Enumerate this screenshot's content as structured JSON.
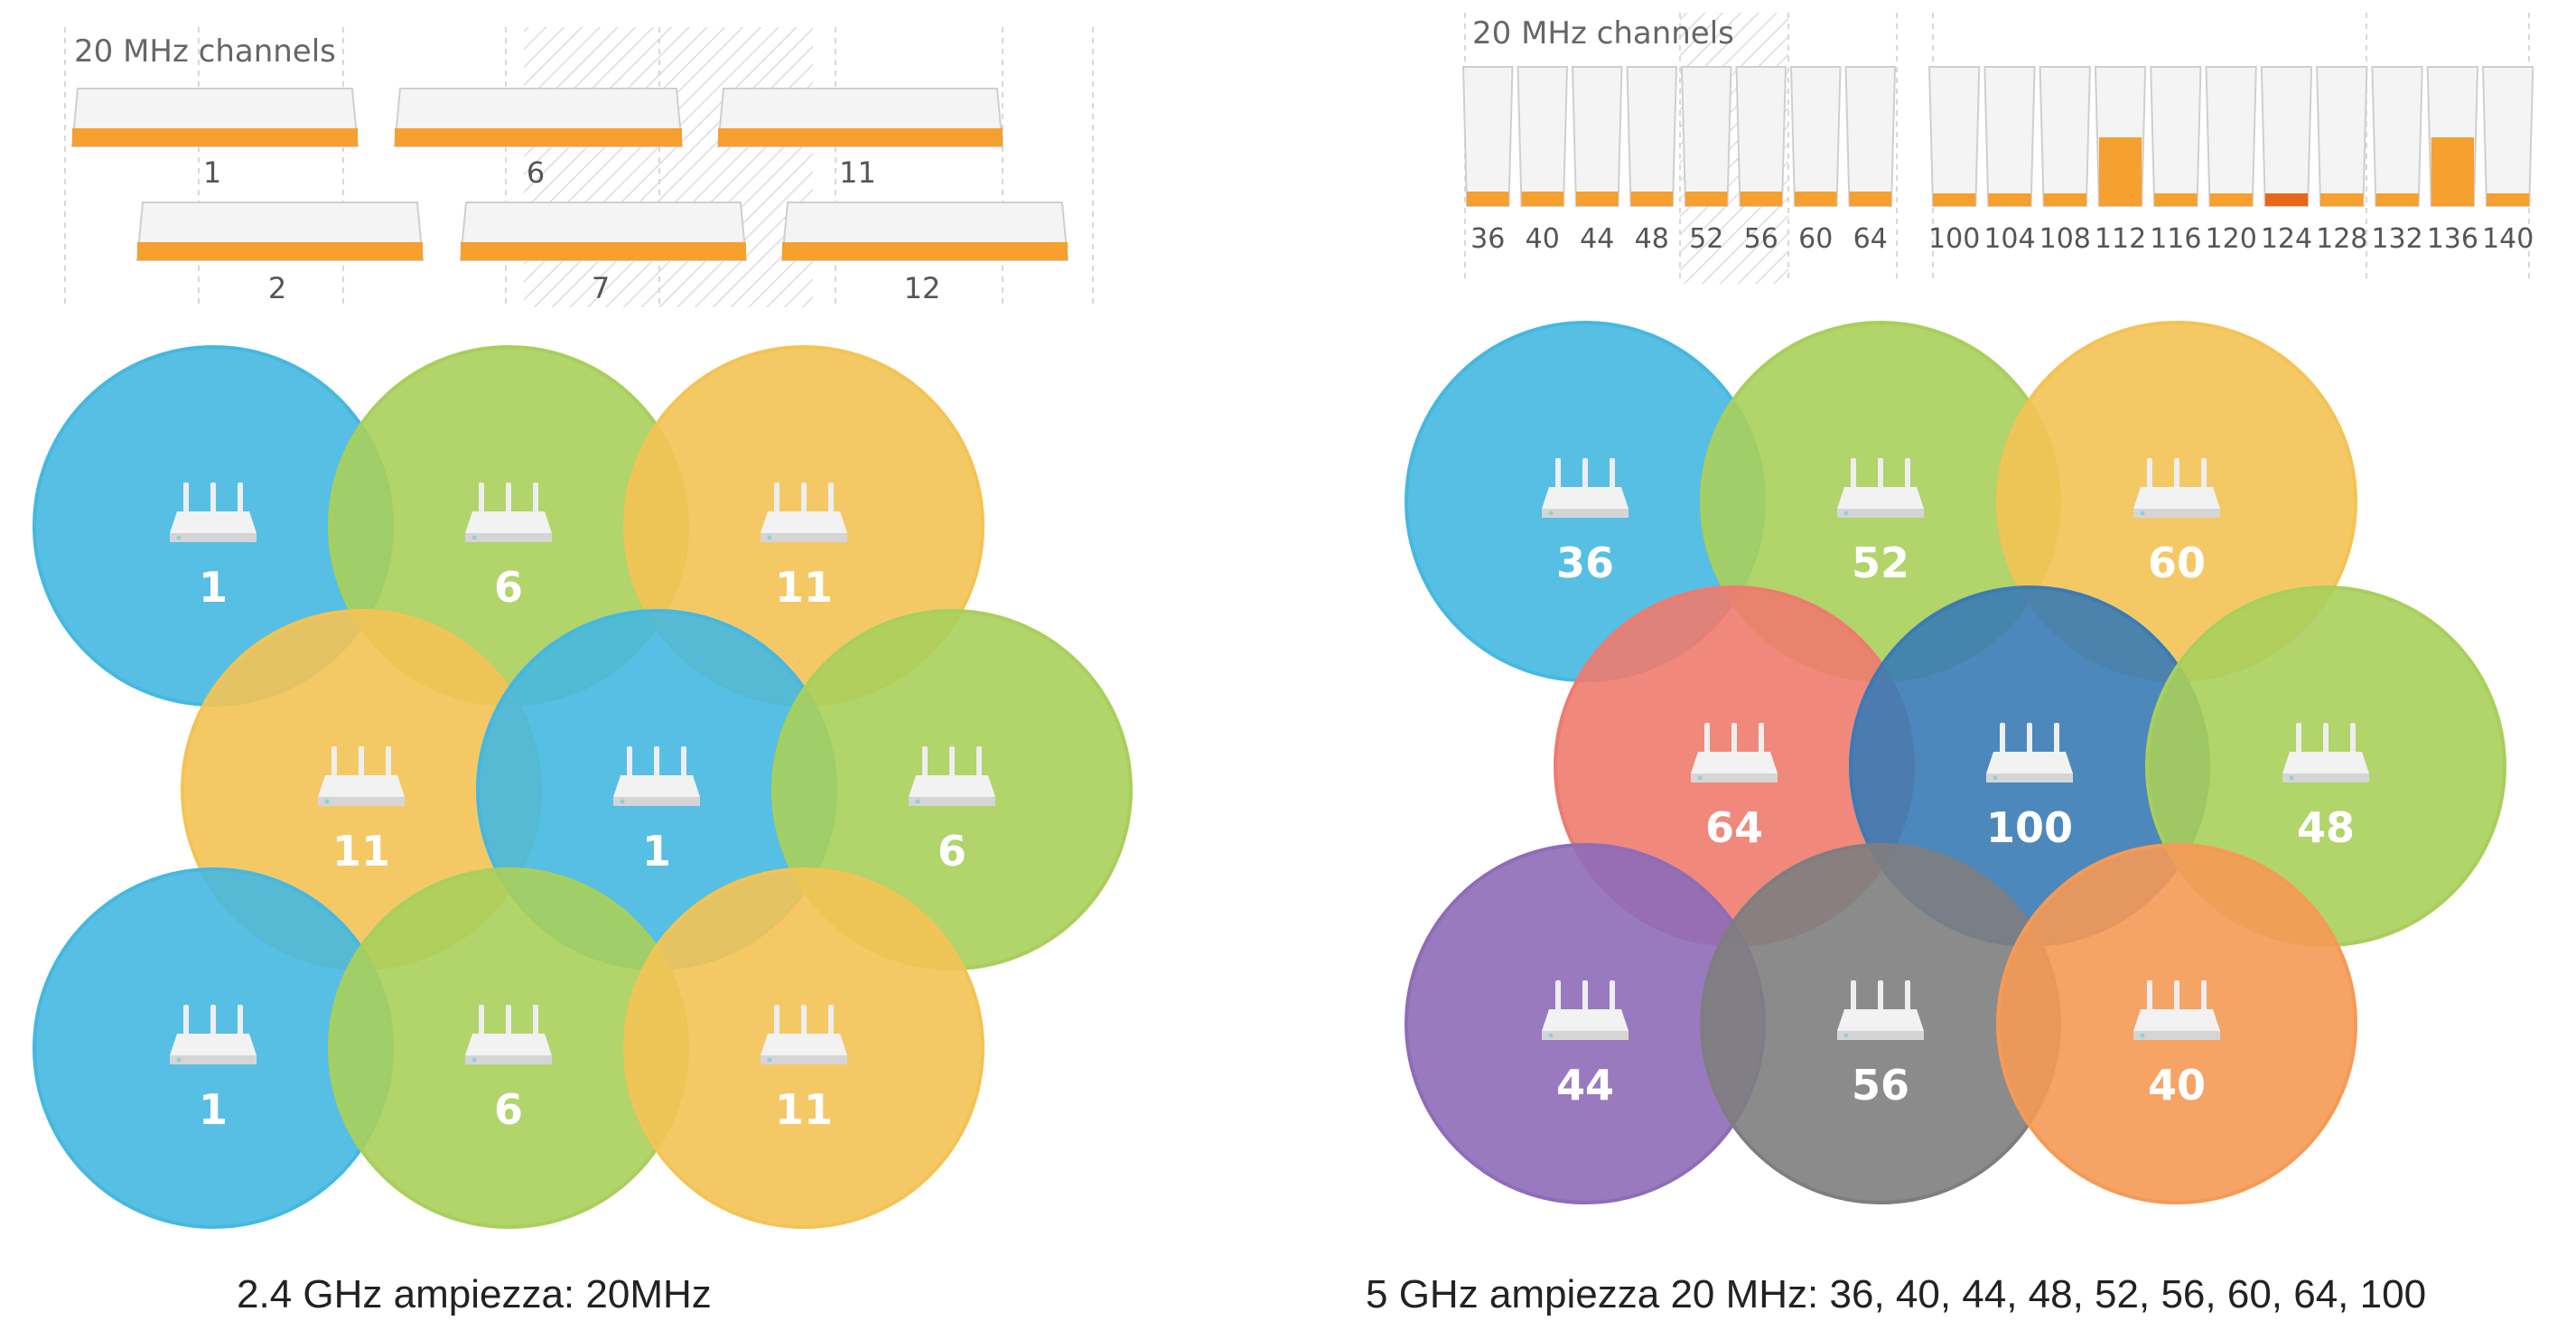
{
  "left_panel": {
    "band_header": "20 MHz channels",
    "top_row_labels": [
      "1",
      "6",
      "11"
    ],
    "bottom_row_labels": [
      "2",
      "7",
      "12"
    ],
    "cells": [
      {
        "label": "1",
        "color": "#45b8e0"
      },
      {
        "label": "6",
        "color": "#a8cf5b"
      },
      {
        "label": "11",
        "color": "#f3c354"
      },
      {
        "label": "11",
        "color": "#f3c354"
      },
      {
        "label": "1",
        "color": "#45b8e0"
      },
      {
        "label": "6",
        "color": "#a8cf5b"
      },
      {
        "label": "1",
        "color": "#45b8e0"
      },
      {
        "label": "6",
        "color": "#a8cf5b"
      },
      {
        "label": "11",
        "color": "#f3c354"
      }
    ],
    "caption": "2.4 GHz ampiezza: 20MHz"
  },
  "right_panel": {
    "band_header": "20 MHz channels",
    "group1_labels": [
      "36",
      "40",
      "44",
      "48",
      "52",
      "56",
      "60",
      "64"
    ],
    "group2_labels": [
      "100",
      "104",
      "108",
      "112",
      "116",
      "120",
      "124",
      "128",
      "132",
      "136",
      "140"
    ],
    "group2_highlight": [
      "112",
      "136"
    ],
    "group2_accent": [
      "124"
    ],
    "cells": [
      {
        "label": "36",
        "color": "#45b8e0"
      },
      {
        "label": "52",
        "color": "#a8cf5b"
      },
      {
        "label": "60",
        "color": "#f3c354"
      },
      {
        "label": "64",
        "color": "#ee7b6e"
      },
      {
        "label": "100",
        "color": "#3a7bb5"
      },
      {
        "label": "48",
        "color": "#a8cf5b"
      },
      {
        "label": "44",
        "color": "#8e6cb8"
      },
      {
        "label": "56",
        "color": "#7e7e80"
      },
      {
        "label": "40",
        "color": "#f59a55"
      }
    ],
    "caption": "5 GHz ampiezza 20 MHz: 36, 40, 44, 48, 52, 56, 60, 64, 100"
  },
  "colors": {
    "bar_orange": "#f5a02f",
    "bar_accent": "#e8681a",
    "grid": "#d8d8d8",
    "hatch": "#dcdcdc",
    "label_gray": "#555555"
  },
  "icons": [
    "router-icon"
  ]
}
